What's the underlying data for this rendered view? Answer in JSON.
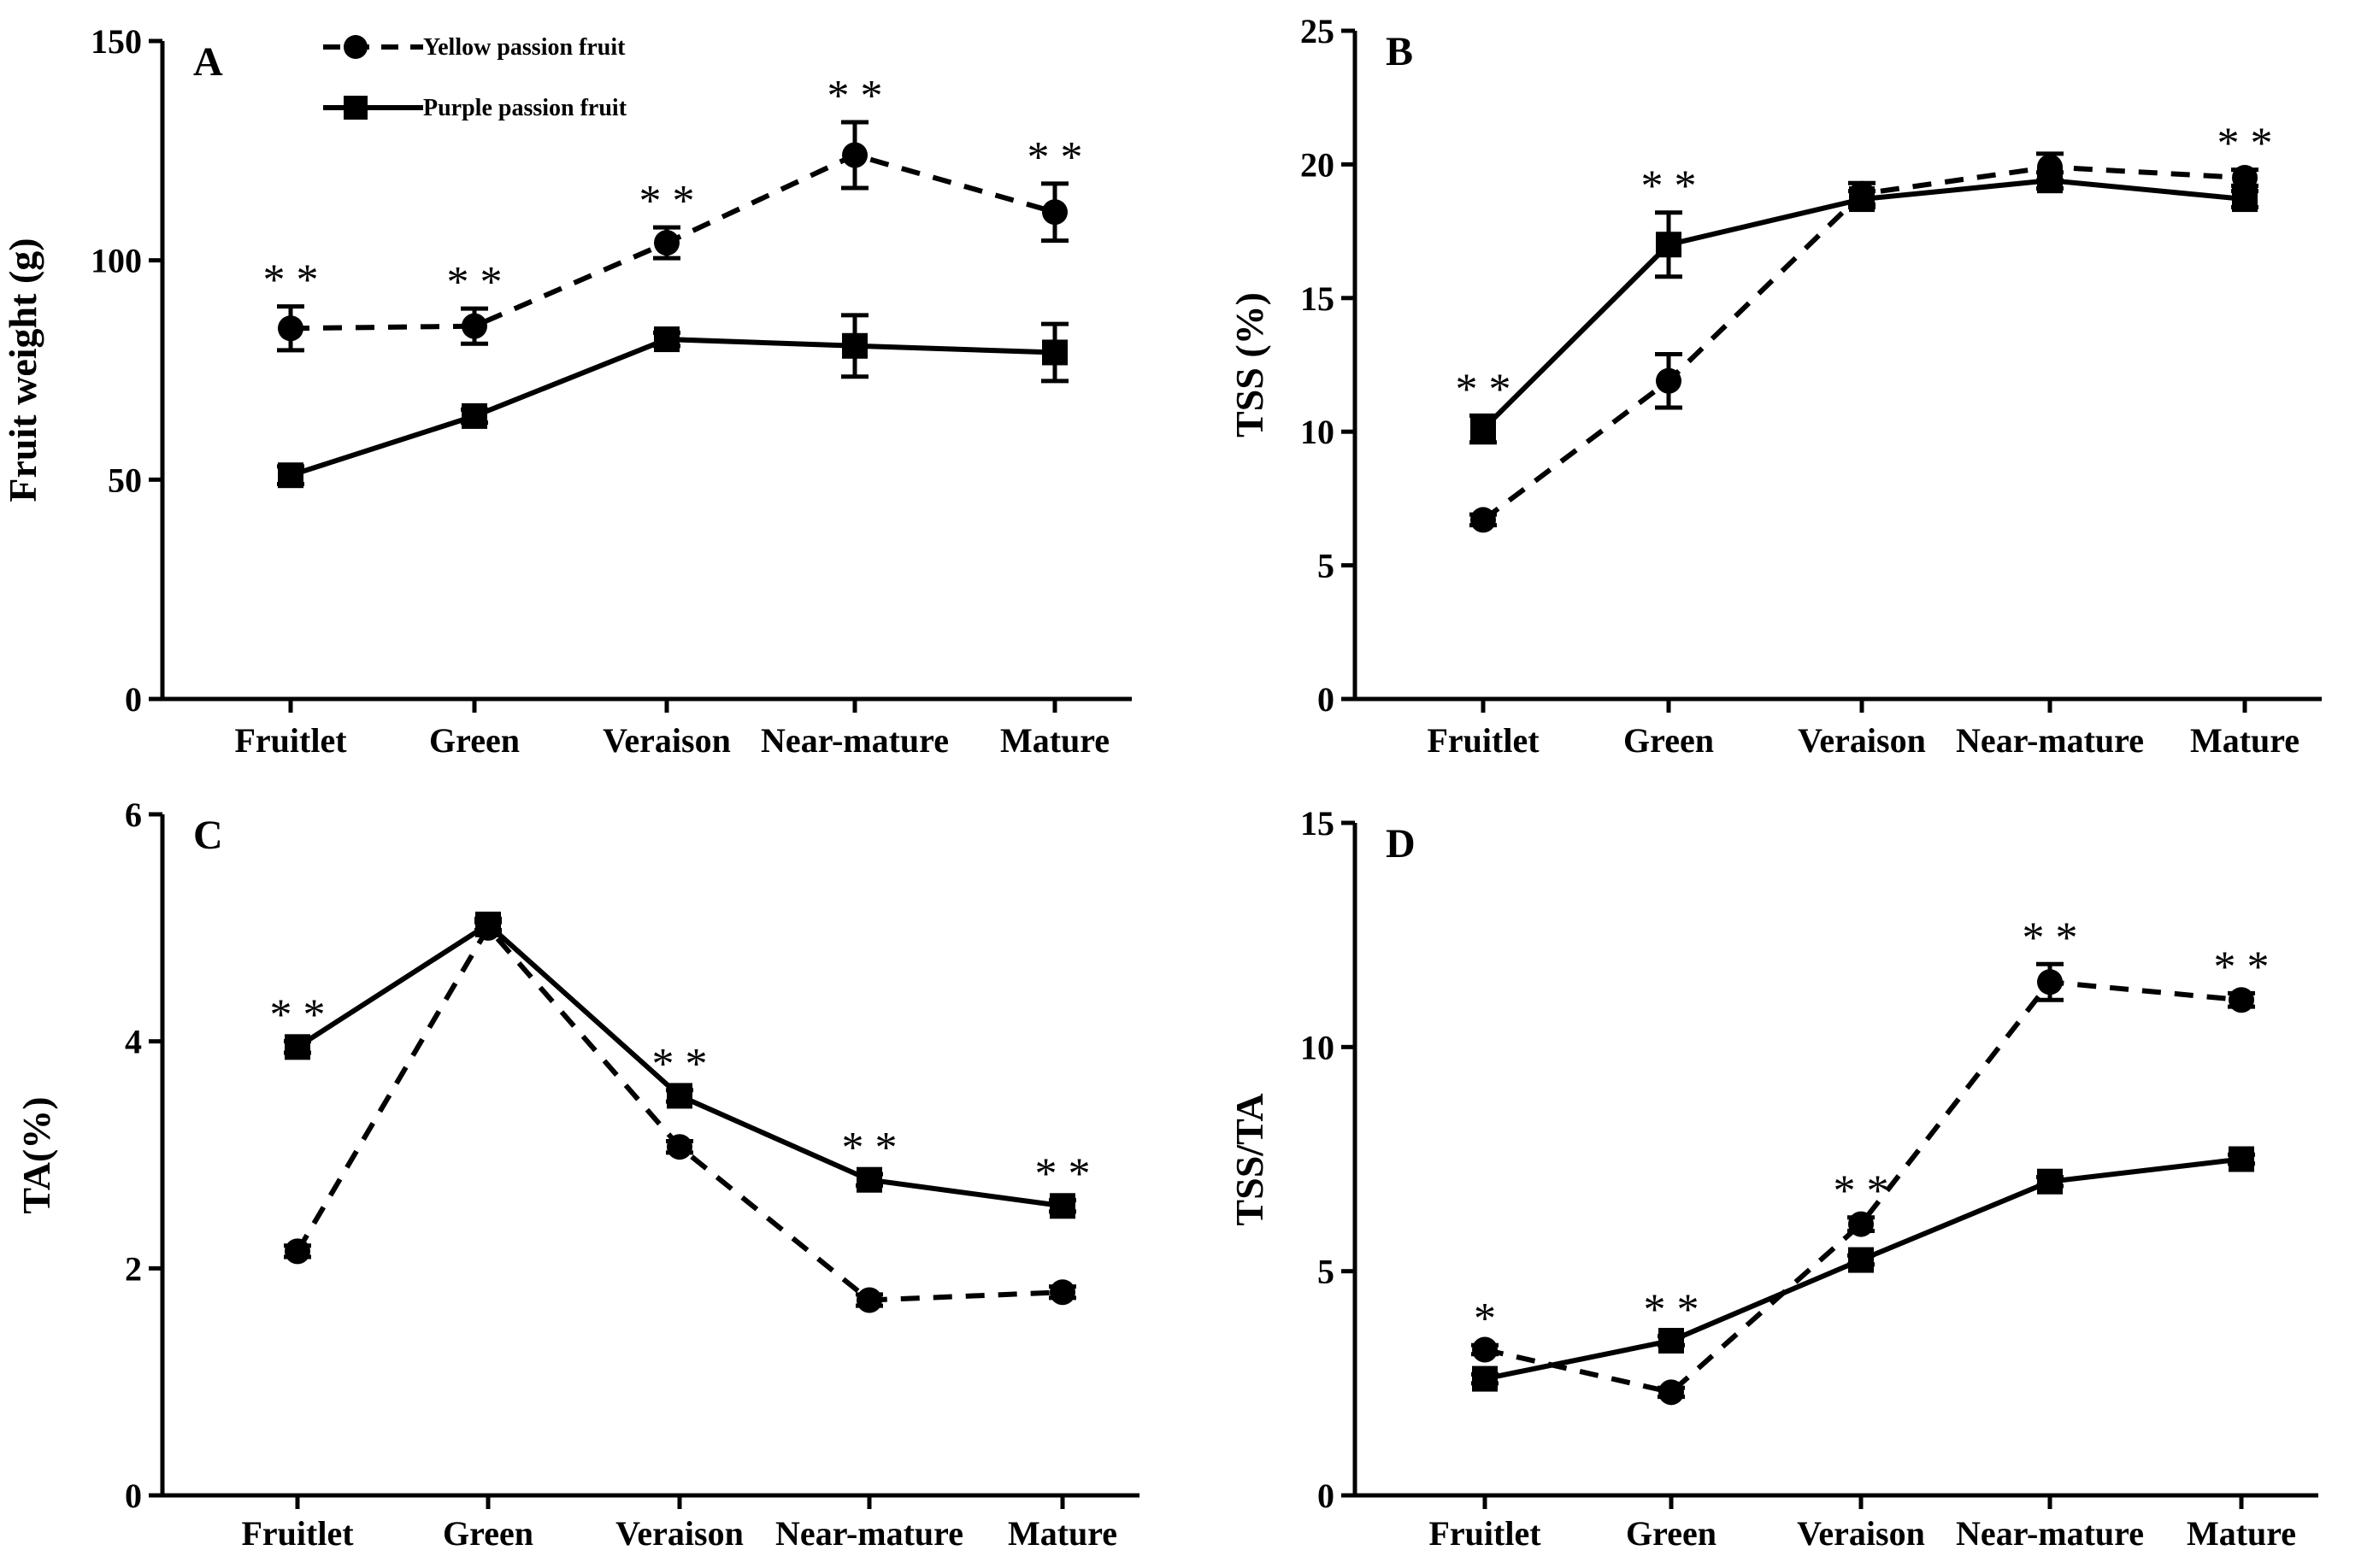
{
  "legend": [
    {
      "name": "Yellow passion fruit",
      "marker": "circle",
      "dash": true
    },
    {
      "name": "Purple passion fruit",
      "marker": "square",
      "dash": false
    }
  ],
  "chart_data": [
    {
      "panel": "A",
      "type": "line",
      "categories": [
        "Fruitlet",
        "Green",
        "Veraison",
        "Near-mature",
        "Mature"
      ],
      "ylabel": "Fruit weight (g)",
      "ylim": [
        0,
        150
      ],
      "yticks": [
        0,
        50,
        100,
        150
      ],
      "series": [
        {
          "name": "Yellow passion fruit",
          "values": [
            84.5,
            85,
            104,
            124,
            111
          ],
          "errors": [
            5,
            4,
            3.5,
            7.5,
            6.5
          ]
        },
        {
          "name": "Purple passion fruit",
          "values": [
            51,
            64.5,
            82,
            80.5,
            79
          ],
          "errors": [
            2,
            1.5,
            1.5,
            7,
            6.5
          ]
        }
      ],
      "significance": [
        "**",
        "**",
        "**",
        "**",
        "**"
      ]
    },
    {
      "panel": "B",
      "type": "line",
      "categories": [
        "Fruitlet",
        "Green",
        "Veraison",
        "Near-mature",
        "Mature"
      ],
      "ylabel": "TSS (%)",
      "ylim": [
        0,
        25
      ],
      "yticks": [
        0,
        5,
        10,
        15,
        20,
        25
      ],
      "series": [
        {
          "name": "Yellow passion fruit",
          "values": [
            6.7,
            11.9,
            18.9,
            19.9,
            19.5
          ],
          "errors": [
            0.2,
            1.0,
            0.4,
            0.5,
            0.3
          ]
        },
        {
          "name": "Purple passion fruit",
          "values": [
            10.1,
            17.0,
            18.7,
            19.4,
            18.7
          ],
          "errors": [
            0.5,
            1.2,
            0.3,
            0.3,
            0.3
          ]
        }
      ],
      "significance": [
        "**",
        "**",
        "",
        "",
        "**"
      ]
    },
    {
      "panel": "C",
      "type": "line",
      "categories": [
        "Fruitlet",
        "Green",
        "Veraison",
        "Near-mature",
        "Mature"
      ],
      "ylabel": "TA(%)",
      "ylim": [
        0,
        6
      ],
      "yticks": [
        0,
        2,
        4,
        6
      ],
      "series": [
        {
          "name": "Yellow passion fruit",
          "values": [
            2.15,
            5.0,
            3.07,
            1.72,
            1.79
          ],
          "errors": [
            0.05,
            0.05,
            0.05,
            0.05,
            0.05
          ]
        },
        {
          "name": "Purple passion fruit",
          "values": [
            3.95,
            5.03,
            3.52,
            2.78,
            2.55
          ],
          "errors": [
            0.05,
            0.05,
            0.05,
            0.05,
            0.05
          ]
        }
      ],
      "significance": [
        "**",
        "",
        "**",
        "**",
        "**"
      ]
    },
    {
      "panel": "D",
      "type": "line",
      "categories": [
        "Fruitlet",
        "Green",
        "Veraison",
        "Near-mature",
        "Mature"
      ],
      "ylabel": "TSS/TA",
      "ylim": [
        0,
        15
      ],
      "yticks": [
        0,
        5,
        10,
        15
      ],
      "series": [
        {
          "name": "Yellow passion fruit",
          "values": [
            3.25,
            2.3,
            6.05,
            11.45,
            11.05
          ],
          "errors": [
            0.1,
            0.1,
            0.15,
            0.4,
            0.15
          ]
        },
        {
          "name": "Purple passion fruit",
          "values": [
            2.6,
            3.45,
            5.25,
            7.0,
            7.5
          ],
          "errors": [
            0.1,
            0.1,
            0.1,
            0.1,
            0.1
          ]
        }
      ],
      "significance": [
        "*",
        "**",
        "**",
        "**",
        "**"
      ]
    }
  ]
}
